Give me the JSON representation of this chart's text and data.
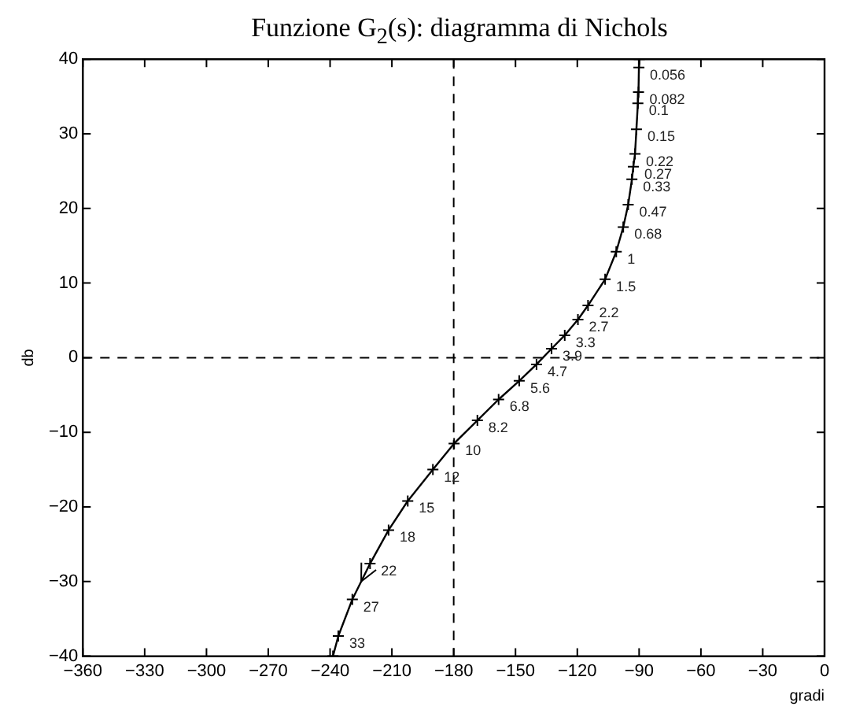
{
  "chart_data": {
    "type": "line",
    "title": "Funzione G$_{2}$(s): diagramma di Nichols",
    "xlabel": "gradi",
    "ylabel": "db",
    "xlim": [
      -360,
      0
    ],
    "xticks": [
      -360,
      -330,
      -300,
      -270,
      -240,
      -210,
      -180,
      -150,
      -120,
      -90,
      -60,
      -30,
      0
    ],
    "ylim": [
      -40,
      40
    ],
    "yticks": [
      -40,
      -30,
      -20,
      -10,
      0,
      10,
      20,
      30,
      40
    ],
    "grid": false,
    "legend": false,
    "marker": "cross",
    "line_style": "solid",
    "series": [
      {
        "color": "#000000",
        "x": [
          -89.9,
          -90.1,
          -90.3,
          -90.6,
          -91.3,
          -92.0,
          -92.8,
          -93.5,
          -95.3,
          -97.7,
          -101.1,
          -106.5,
          -114.8,
          -119.7,
          -126.1,
          -132.5,
          -139.8,
          -148.2,
          -158.2,
          -168.5,
          -179.8,
          -190.1,
          -202.3,
          -211.6,
          -220.6,
          -229.2,
          -236.0,
          -238.6
        ],
        "values": [
          40,
          38.9,
          35.6,
          34.1,
          30.6,
          27.3,
          25.6,
          23.9,
          20.5,
          17.5,
          14.2,
          10.5,
          7.0,
          5.1,
          3.0,
          1.2,
          -0.9,
          -3.1,
          -5.6,
          -8.4,
          -11.5,
          -15.0,
          -19.2,
          -23.1,
          -27.6,
          -32.4,
          -37.3,
          -40
        ]
      }
    ],
    "ref_lines": [
      {
        "axis": "x",
        "value": -180,
        "line_style": "dashed",
        "color": "#000000"
      },
      {
        "axis": "y",
        "value": 0,
        "line_style": "dashed",
        "color": "#000000"
      }
    ],
    "annotations": [
      {
        "text": "0.056",
        "x": -90.1,
        "y": 38.9
      },
      {
        "text": "0.082",
        "x": -90.3,
        "y": 35.6
      },
      {
        "text": "0.1",
        "x": -90.6,
        "y": 34.1
      },
      {
        "text": "0.15",
        "x": -91.3,
        "y": 30.6
      },
      {
        "text": "0.22",
        "x": -92.0,
        "y": 27.3
      },
      {
        "text": "0.27",
        "x": -92.8,
        "y": 25.6
      },
      {
        "text": "0.33",
        "x": -93.5,
        "y": 23.9
      },
      {
        "text": "0.47",
        "x": -95.3,
        "y": 20.5
      },
      {
        "text": "0.68",
        "x": -97.7,
        "y": 17.5
      },
      {
        "text": "1",
        "x": -101.1,
        "y": 14.2
      },
      {
        "text": "1.5",
        "x": -106.5,
        "y": 10.5
      },
      {
        "text": "2.2",
        "x": -114.8,
        "y": 7.0
      },
      {
        "text": "2.7",
        "x": -119.7,
        "y": 5.1
      },
      {
        "text": "3.3",
        "x": -126.1,
        "y": 3.0
      },
      {
        "text": "3.9",
        "x": -132.5,
        "y": 1.2
      },
      {
        "text": "4.7",
        "x": -139.8,
        "y": -0.9
      },
      {
        "text": "5.6",
        "x": -148.2,
        "y": -3.1
      },
      {
        "text": "6.8",
        "x": -158.2,
        "y": -5.6
      },
      {
        "text": "8.2",
        "x": -168.5,
        "y": -8.4
      },
      {
        "text": "10",
        "x": -179.8,
        "y": -11.5
      },
      {
        "text": "12",
        "x": -190.1,
        "y": -15.0
      },
      {
        "text": "15",
        "x": -202.3,
        "y": -19.2
      },
      {
        "text": "18",
        "x": -211.6,
        "y": -23.1
      },
      {
        "text": "22",
        "x": -220.6,
        "y": -27.6
      },
      {
        "text": "27",
        "x": -229.2,
        "y": -32.4
      },
      {
        "text": "33",
        "x": -236.0,
        "y": -37.3
      }
    ]
  }
}
